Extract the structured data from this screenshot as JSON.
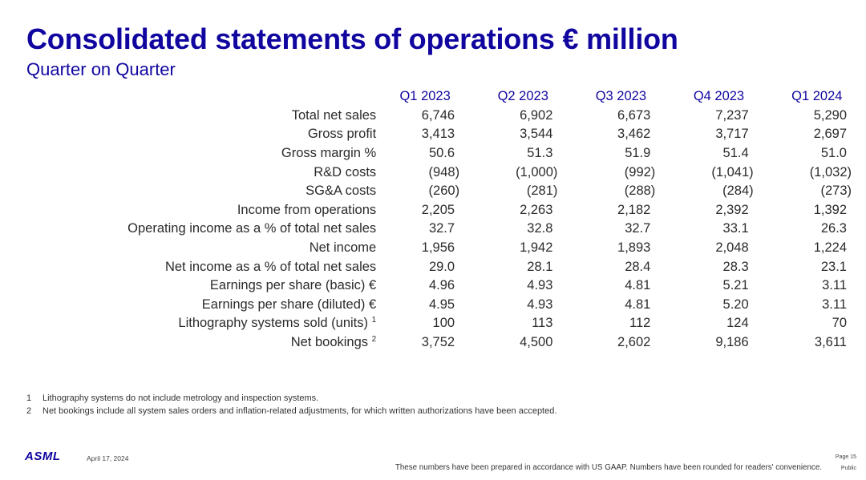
{
  "title": "Consolidated statements of operations € million",
  "subtitle": "Quarter on Quarter",
  "table": {
    "columns": [
      "Q1 2023",
      "Q2 2023",
      "Q3 2023",
      "Q4 2023",
      "Q1 2024"
    ],
    "rows": [
      {
        "label": "Total net sales",
        "sup": "",
        "values": [
          "6,746",
          "6,902",
          "6,673",
          "7,237",
          "5,290"
        ]
      },
      {
        "label": "Gross profit",
        "sup": "",
        "values": [
          "3,413",
          "3,544",
          "3,462",
          "3,717",
          "2,697"
        ]
      },
      {
        "label": "Gross margin %",
        "sup": "",
        "values": [
          "50.6",
          "51.3",
          "51.9",
          "51.4",
          "51.0"
        ]
      },
      {
        "label": "R&D costs",
        "sup": "",
        "values": [
          "(948)",
          "(1,000)",
          "(992)",
          "(1,041)",
          "(1,032)"
        ]
      },
      {
        "label": "SG&A costs",
        "sup": "",
        "values": [
          "(260)",
          "(281)",
          "(288)",
          "(284)",
          "(273)"
        ]
      },
      {
        "label": "Income from operations",
        "sup": "",
        "values": [
          "2,205",
          "2,263",
          "2,182",
          "2,392",
          "1,392"
        ]
      },
      {
        "label": "Operating income as a % of total net sales",
        "sup": "",
        "values": [
          "32.7",
          "32.8",
          "32.7",
          "33.1",
          "26.3"
        ]
      },
      {
        "label": "Net income",
        "sup": "",
        "values": [
          "1,956",
          "1,942",
          "1,893",
          "2,048",
          "1,224"
        ]
      },
      {
        "label": "Net income as a % of total net sales",
        "sup": "",
        "values": [
          "29.0",
          "28.1",
          "28.4",
          "28.3",
          "23.1"
        ]
      },
      {
        "label": "Earnings per share (basic) €",
        "sup": "",
        "values": [
          "4.96",
          "4.93",
          "4.81",
          "5.21",
          "3.11"
        ]
      },
      {
        "label": "Earnings per share (diluted) €",
        "sup": "",
        "values": [
          "4.95",
          "4.93",
          "4.81",
          "5.20",
          "3.11"
        ]
      },
      {
        "label": "Lithography systems sold (units)",
        "sup": "1",
        "values": [
          "100",
          "113",
          "112",
          "124",
          "70"
        ]
      },
      {
        "label": "Net bookings",
        "sup": "2",
        "values": [
          "3,752",
          "4,500",
          "2,602",
          "9,186",
          "3,611"
        ]
      }
    ]
  },
  "footnotes": [
    {
      "num": "1",
      "text": "Lithography systems do not include metrology and inspection systems."
    },
    {
      "num": "2",
      "text": "Net bookings include all system sales orders and inflation-related adjustments, for which written authorizations have been accepted."
    }
  ],
  "footer": {
    "logo": "ASML",
    "date": "April 17, 2024",
    "disclaimer": "These numbers have been prepared in accordance with US GAAP.  Numbers have been rounded for readers' convenience.",
    "page": "Page 15",
    "classification": "Public"
  },
  "colors": {
    "brand": "#10069f",
    "text": "#2b2b2b"
  }
}
